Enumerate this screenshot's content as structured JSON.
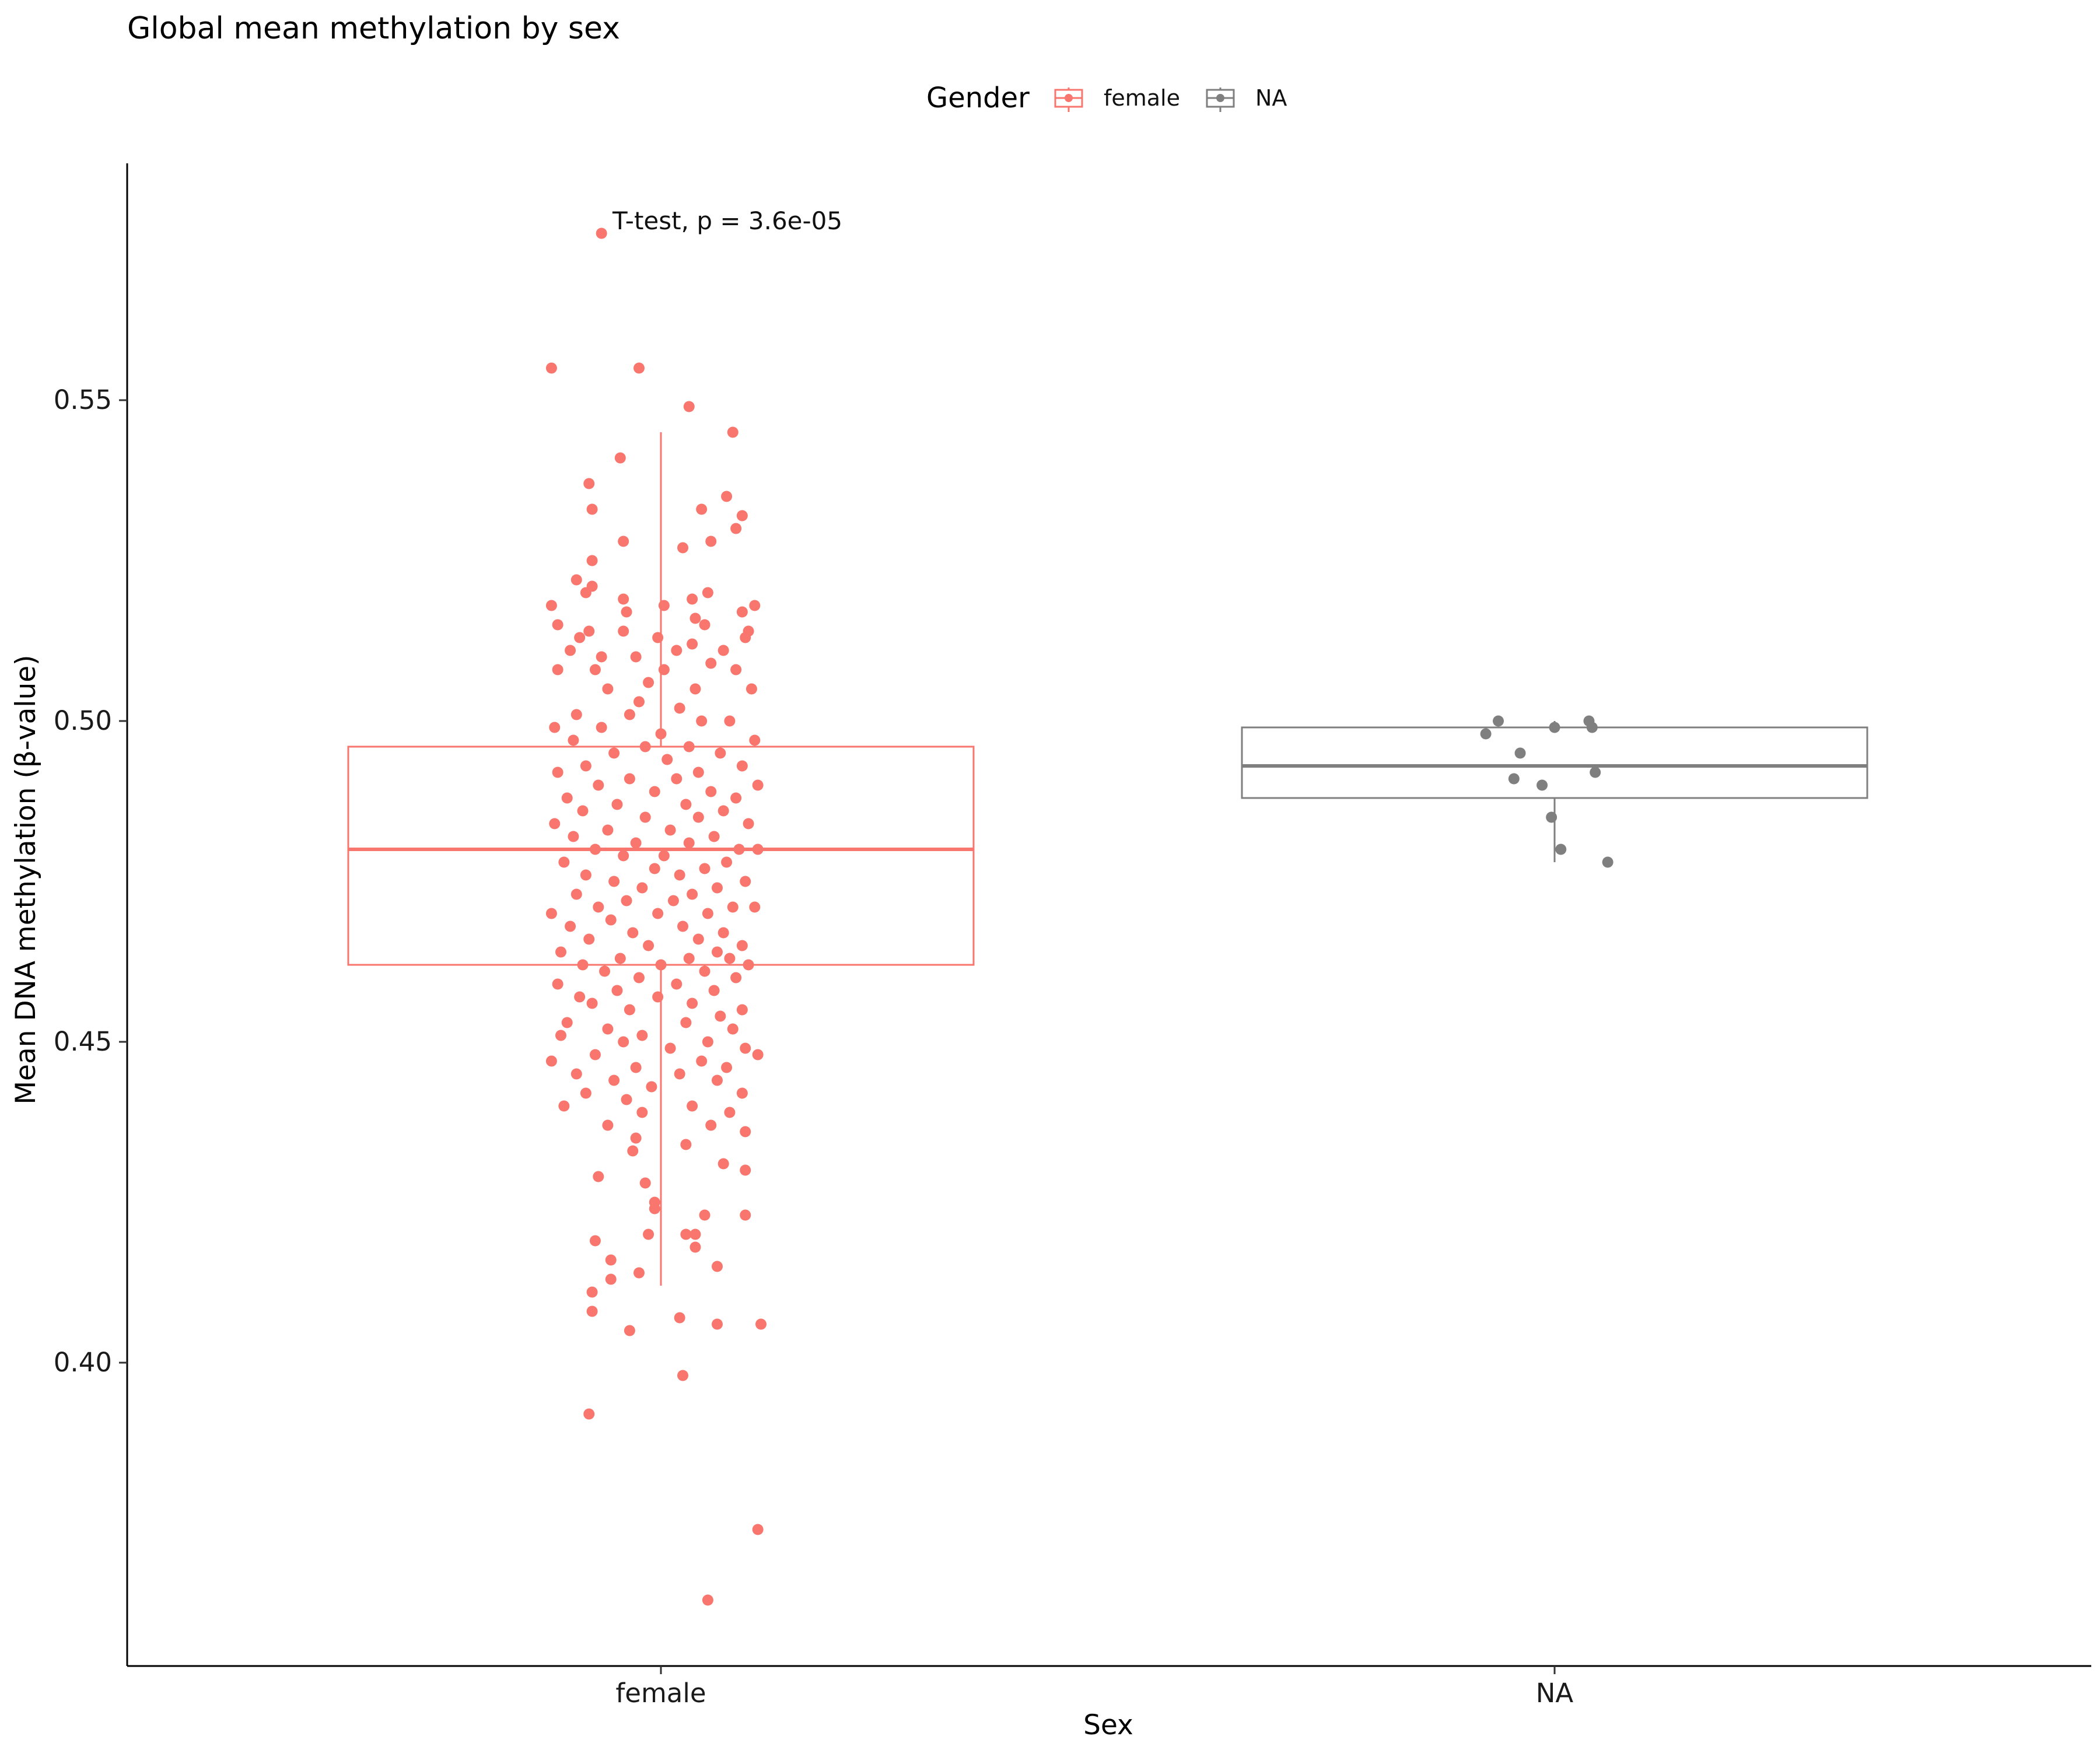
{
  "chart_data": {
    "type": "box",
    "title": "Global mean methylation by sex",
    "xlabel": "Sex",
    "ylabel": "Mean DNA methylation (β-value)",
    "categories": [
      "female",
      "NA"
    ],
    "ylim": [
      0.358,
      0.592
    ],
    "yticks": [
      0.4,
      0.45,
      0.5,
      0.55
    ],
    "ytick_labels": [
      "0.40",
      "0.45",
      "0.50",
      "0.55"
    ],
    "grid": false,
    "legend": {
      "title": "Gender",
      "placement": "top",
      "entries": [
        {
          "label": "female",
          "color": "#F8766D"
        },
        {
          "label": "NA",
          "color": "#7F7F7F"
        }
      ]
    },
    "annotation": "T-test, p = 3.6e-05",
    "series": [
      {
        "name": "female",
        "category": "female",
        "color": "#F8766D",
        "box": {
          "whisker_low": 0.412,
          "q1": 0.462,
          "median": 0.48,
          "q3": 0.496,
          "whisker_high": 0.545
        },
        "points": [
          {
            "jitter": -0.19,
            "y": 0.576
          },
          {
            "jitter": -0.35,
            "y": 0.555
          },
          {
            "jitter": -0.07,
            "y": 0.555
          },
          {
            "jitter": 0.09,
            "y": 0.549
          },
          {
            "jitter": 0.23,
            "y": 0.545
          },
          {
            "jitter": -0.13,
            "y": 0.541
          },
          {
            "jitter": -0.23,
            "y": 0.537
          },
          {
            "jitter": 0.21,
            "y": 0.535
          },
          {
            "jitter": 0.13,
            "y": 0.533
          },
          {
            "jitter": 0.26,
            "y": 0.532
          },
          {
            "jitter": -0.22,
            "y": 0.533
          },
          {
            "jitter": 0.24,
            "y": 0.53
          },
          {
            "jitter": -0.12,
            "y": 0.528
          },
          {
            "jitter": 0.16,
            "y": 0.528
          },
          {
            "jitter": 0.07,
            "y": 0.527
          },
          {
            "jitter": -0.22,
            "y": 0.525
          },
          {
            "jitter": -0.27,
            "y": 0.522
          },
          {
            "jitter": -0.22,
            "y": 0.521
          },
          {
            "jitter": 0.15,
            "y": 0.52
          },
          {
            "jitter": -0.24,
            "y": 0.52
          },
          {
            "jitter": 0.1,
            "y": 0.519
          },
          {
            "jitter": -0.12,
            "y": 0.519
          },
          {
            "jitter": -0.35,
            "y": 0.518
          },
          {
            "jitter": 0.01,
            "y": 0.518
          },
          {
            "jitter": 0.3,
            "y": 0.518
          },
          {
            "jitter": -0.11,
            "y": 0.517
          },
          {
            "jitter": 0.26,
            "y": 0.517
          },
          {
            "jitter": 0.11,
            "y": 0.516
          },
          {
            "jitter": -0.33,
            "y": 0.515
          },
          {
            "jitter": 0.14,
            "y": 0.515
          },
          {
            "jitter": -0.12,
            "y": 0.514
          },
          {
            "jitter": 0.28,
            "y": 0.514
          },
          {
            "jitter": -0.23,
            "y": 0.514
          },
          {
            "jitter": -0.26,
            "y": 0.513
          },
          {
            "jitter": -0.01,
            "y": 0.513
          },
          {
            "jitter": 0.27,
            "y": 0.513
          },
          {
            "jitter": 0.1,
            "y": 0.512
          },
          {
            "jitter": -0.29,
            "y": 0.511
          },
          {
            "jitter": 0.05,
            "y": 0.511
          },
          {
            "jitter": 0.2,
            "y": 0.511
          },
          {
            "jitter": -0.19,
            "y": 0.51
          },
          {
            "jitter": -0.08,
            "y": 0.51
          },
          {
            "jitter": 0.16,
            "y": 0.509
          },
          {
            "jitter": -0.33,
            "y": 0.508
          },
          {
            "jitter": -0.21,
            "y": 0.508
          },
          {
            "jitter": 0.01,
            "y": 0.508
          },
          {
            "jitter": 0.24,
            "y": 0.508
          },
          {
            "jitter": -0.04,
            "y": 0.506
          },
          {
            "jitter": 0.11,
            "y": 0.505
          },
          {
            "jitter": -0.17,
            "y": 0.505
          },
          {
            "jitter": 0.29,
            "y": 0.505
          },
          {
            "jitter": -0.07,
            "y": 0.503
          },
          {
            "jitter": 0.06,
            "y": 0.502
          },
          {
            "jitter": -0.27,
            "y": 0.501
          },
          {
            "jitter": -0.1,
            "y": 0.501
          },
          {
            "jitter": 0.13,
            "y": 0.5
          },
          {
            "jitter": 0.22,
            "y": 0.5
          },
          {
            "jitter": -0.34,
            "y": 0.499
          },
          {
            "jitter": -0.19,
            "y": 0.499
          },
          {
            "jitter": 0.0,
            "y": 0.498
          },
          {
            "jitter": 0.3,
            "y": 0.497
          },
          {
            "jitter": -0.28,
            "y": 0.497
          },
          {
            "jitter": -0.05,
            "y": 0.496
          },
          {
            "jitter": 0.09,
            "y": 0.496
          },
          {
            "jitter": 0.19,
            "y": 0.495
          },
          {
            "jitter": -0.15,
            "y": 0.495
          },
          {
            "jitter": 0.02,
            "y": 0.494
          },
          {
            "jitter": -0.24,
            "y": 0.493
          },
          {
            "jitter": 0.26,
            "y": 0.493
          },
          {
            "jitter": -0.33,
            "y": 0.492
          },
          {
            "jitter": 0.12,
            "y": 0.492
          },
          {
            "jitter": -0.1,
            "y": 0.491
          },
          {
            "jitter": 0.05,
            "y": 0.491
          },
          {
            "jitter": -0.2,
            "y": 0.49
          },
          {
            "jitter": 0.31,
            "y": 0.49
          },
          {
            "jitter": -0.02,
            "y": 0.489
          },
          {
            "jitter": 0.16,
            "y": 0.489
          },
          {
            "jitter": -0.3,
            "y": 0.488
          },
          {
            "jitter": 0.24,
            "y": 0.488
          },
          {
            "jitter": -0.14,
            "y": 0.487
          },
          {
            "jitter": 0.08,
            "y": 0.487
          },
          {
            "jitter": -0.25,
            "y": 0.486
          },
          {
            "jitter": 0.2,
            "y": 0.486
          },
          {
            "jitter": -0.05,
            "y": 0.485
          },
          {
            "jitter": 0.12,
            "y": 0.485
          },
          {
            "jitter": -0.34,
            "y": 0.484
          },
          {
            "jitter": 0.28,
            "y": 0.484
          },
          {
            "jitter": -0.17,
            "y": 0.483
          },
          {
            "jitter": 0.03,
            "y": 0.483
          },
          {
            "jitter": -0.28,
            "y": 0.482
          },
          {
            "jitter": 0.17,
            "y": 0.482
          },
          {
            "jitter": -0.08,
            "y": 0.481
          },
          {
            "jitter": 0.09,
            "y": 0.481
          },
          {
            "jitter": -0.21,
            "y": 0.48
          },
          {
            "jitter": 0.25,
            "y": 0.48
          },
          {
            "jitter": 0.31,
            "y": 0.48
          },
          {
            "jitter": -0.12,
            "y": 0.479
          },
          {
            "jitter": 0.01,
            "y": 0.479
          },
          {
            "jitter": -0.31,
            "y": 0.478
          },
          {
            "jitter": 0.21,
            "y": 0.478
          },
          {
            "jitter": -0.02,
            "y": 0.477
          },
          {
            "jitter": 0.14,
            "y": 0.477
          },
          {
            "jitter": -0.24,
            "y": 0.476
          },
          {
            "jitter": 0.06,
            "y": 0.476
          },
          {
            "jitter": -0.15,
            "y": 0.475
          },
          {
            "jitter": 0.27,
            "y": 0.475
          },
          {
            "jitter": -0.06,
            "y": 0.474
          },
          {
            "jitter": 0.18,
            "y": 0.474
          },
          {
            "jitter": -0.27,
            "y": 0.473
          },
          {
            "jitter": 0.1,
            "y": 0.473
          },
          {
            "jitter": -0.11,
            "y": 0.472
          },
          {
            "jitter": 0.04,
            "y": 0.472
          },
          {
            "jitter": -0.2,
            "y": 0.471
          },
          {
            "jitter": 0.23,
            "y": 0.471
          },
          {
            "jitter": 0.3,
            "y": 0.471
          },
          {
            "jitter": -0.35,
            "y": 0.47
          },
          {
            "jitter": -0.01,
            "y": 0.47
          },
          {
            "jitter": 0.15,
            "y": 0.47
          },
          {
            "jitter": -0.16,
            "y": 0.469
          },
          {
            "jitter": 0.07,
            "y": 0.468
          },
          {
            "jitter": -0.29,
            "y": 0.468
          },
          {
            "jitter": 0.2,
            "y": 0.467
          },
          {
            "jitter": -0.09,
            "y": 0.467
          },
          {
            "jitter": 0.12,
            "y": 0.466
          },
          {
            "jitter": -0.23,
            "y": 0.466
          },
          {
            "jitter": 0.26,
            "y": 0.465
          },
          {
            "jitter": -0.04,
            "y": 0.465
          },
          {
            "jitter": 0.18,
            "y": 0.464
          },
          {
            "jitter": -0.32,
            "y": 0.464
          },
          {
            "jitter": -0.13,
            "y": 0.463
          },
          {
            "jitter": 0.09,
            "y": 0.463
          },
          {
            "jitter": 0.22,
            "y": 0.463
          },
          {
            "jitter": -0.25,
            "y": 0.462
          },
          {
            "jitter": 0.0,
            "y": 0.462
          },
          {
            "jitter": 0.28,
            "y": 0.462
          },
          {
            "jitter": -0.18,
            "y": 0.461
          },
          {
            "jitter": 0.14,
            "y": 0.461
          },
          {
            "jitter": -0.07,
            "y": 0.46
          },
          {
            "jitter": 0.24,
            "y": 0.46
          },
          {
            "jitter": -0.33,
            "y": 0.459
          },
          {
            "jitter": 0.05,
            "y": 0.459
          },
          {
            "jitter": -0.14,
            "y": 0.458
          },
          {
            "jitter": 0.17,
            "y": 0.458
          },
          {
            "jitter": -0.26,
            "y": 0.457
          },
          {
            "jitter": -0.01,
            "y": 0.457
          },
          {
            "jitter": 0.1,
            "y": 0.456
          },
          {
            "jitter": -0.22,
            "y": 0.456
          },
          {
            "jitter": 0.26,
            "y": 0.455
          },
          {
            "jitter": -0.1,
            "y": 0.455
          },
          {
            "jitter": 0.19,
            "y": 0.454
          },
          {
            "jitter": -0.3,
            "y": 0.453
          },
          {
            "jitter": 0.08,
            "y": 0.453
          },
          {
            "jitter": -0.17,
            "y": 0.452
          },
          {
            "jitter": 0.23,
            "y": 0.452
          },
          {
            "jitter": -0.06,
            "y": 0.451
          },
          {
            "jitter": -0.32,
            "y": 0.451
          },
          {
            "jitter": 0.15,
            "y": 0.45
          },
          {
            "jitter": -0.12,
            "y": 0.45
          },
          {
            "jitter": 0.27,
            "y": 0.449
          },
          {
            "jitter": 0.03,
            "y": 0.449
          },
          {
            "jitter": -0.21,
            "y": 0.448
          },
          {
            "jitter": 0.31,
            "y": 0.448
          },
          {
            "jitter": -0.35,
            "y": 0.447
          },
          {
            "jitter": 0.13,
            "y": 0.447
          },
          {
            "jitter": -0.08,
            "y": 0.446
          },
          {
            "jitter": 0.21,
            "y": 0.446
          },
          {
            "jitter": -0.27,
            "y": 0.445
          },
          {
            "jitter": 0.06,
            "y": 0.445
          },
          {
            "jitter": -0.15,
            "y": 0.444
          },
          {
            "jitter": 0.18,
            "y": 0.444
          },
          {
            "jitter": -0.03,
            "y": 0.443
          },
          {
            "jitter": -0.24,
            "y": 0.442
          },
          {
            "jitter": 0.26,
            "y": 0.442
          },
          {
            "jitter": -0.11,
            "y": 0.441
          },
          {
            "jitter": 0.1,
            "y": 0.44
          },
          {
            "jitter": -0.31,
            "y": 0.44
          },
          {
            "jitter": 0.22,
            "y": 0.439
          },
          {
            "jitter": -0.06,
            "y": 0.439
          },
          {
            "jitter": 0.16,
            "y": 0.437
          },
          {
            "jitter": -0.17,
            "y": 0.437
          },
          {
            "jitter": 0.27,
            "y": 0.436
          },
          {
            "jitter": -0.08,
            "y": 0.435
          },
          {
            "jitter": 0.08,
            "y": 0.434
          },
          {
            "jitter": -0.09,
            "y": 0.433
          },
          {
            "jitter": 0.2,
            "y": 0.431
          },
          {
            "jitter": 0.27,
            "y": 0.43
          },
          {
            "jitter": -0.05,
            "y": 0.428
          },
          {
            "jitter": -0.2,
            "y": 0.429
          },
          {
            "jitter": -0.02,
            "y": 0.425
          },
          {
            "jitter": -0.02,
            "y": 0.424
          },
          {
            "jitter": 0.27,
            "y": 0.423
          },
          {
            "jitter": 0.14,
            "y": 0.423
          },
          {
            "jitter": 0.08,
            "y": 0.42
          },
          {
            "jitter": 0.11,
            "y": 0.42
          },
          {
            "jitter": -0.04,
            "y": 0.42
          },
          {
            "jitter": -0.21,
            "y": 0.419
          },
          {
            "jitter": 0.11,
            "y": 0.418
          },
          {
            "jitter": -0.16,
            "y": 0.416
          },
          {
            "jitter": 0.18,
            "y": 0.415
          },
          {
            "jitter": -0.07,
            "y": 0.414
          },
          {
            "jitter": -0.16,
            "y": 0.413
          },
          {
            "jitter": -0.22,
            "y": 0.411
          },
          {
            "jitter": -0.22,
            "y": 0.408
          },
          {
            "jitter": 0.06,
            "y": 0.407
          },
          {
            "jitter": 0.18,
            "y": 0.406
          },
          {
            "jitter": 0.32,
            "y": 0.406
          },
          {
            "jitter": -0.1,
            "y": 0.405
          },
          {
            "jitter": 0.07,
            "y": 0.398
          },
          {
            "jitter": -0.23,
            "y": 0.392
          },
          {
            "jitter": 0.31,
            "y": 0.374
          },
          {
            "jitter": 0.15,
            "y": 0.363
          }
        ]
      },
      {
        "name": "NA",
        "category": "NA",
        "color": "#7F7F7F",
        "box": {
          "whisker_low": 0.478,
          "q1": 0.488,
          "median": 0.493,
          "q3": 0.499,
          "whisker_high": 0.5
        },
        "points": [
          {
            "jitter": -0.18,
            "y": 0.5
          },
          {
            "jitter": -0.22,
            "y": 0.498
          },
          {
            "jitter": -0.11,
            "y": 0.495
          },
          {
            "jitter": -0.13,
            "y": 0.491
          },
          {
            "jitter": -0.04,
            "y": 0.49
          },
          {
            "jitter": 0.0,
            "y": 0.499
          },
          {
            "jitter": 0.11,
            "y": 0.5
          },
          {
            "jitter": 0.12,
            "y": 0.499
          },
          {
            "jitter": 0.13,
            "y": 0.492
          },
          {
            "jitter": -0.01,
            "y": 0.485
          },
          {
            "jitter": 0.02,
            "y": 0.48
          },
          {
            "jitter": 0.17,
            "y": 0.478
          }
        ]
      }
    ]
  }
}
